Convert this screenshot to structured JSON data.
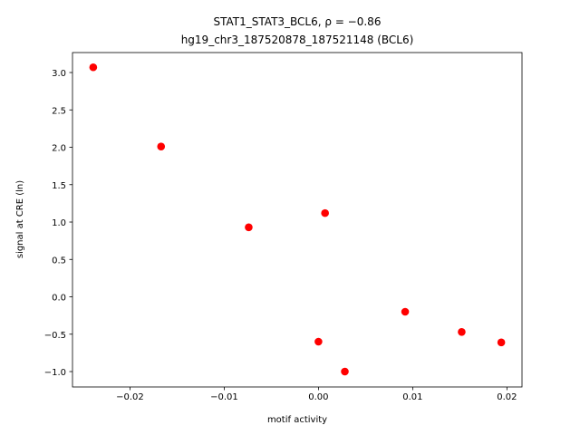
{
  "chart_data": {
    "type": "scatter",
    "title": "STAT1_STAT3_BCL6, ρ = −0.86",
    "subtitle": "hg19_chr3_187520878_187521148 (BCL6)",
    "x_label": "motif activity",
    "y_label": "signal at CRE (ln)",
    "color": "#ff0000",
    "x": [
      -0.0239,
      -0.0167,
      -0.0074,
      0.0007,
      0.0,
      0.0028,
      0.0092,
      0.0152,
      0.0194
    ],
    "values": [
      3.07,
      2.01,
      0.93,
      1.12,
      -0.6,
      -1.0,
      -0.2,
      -0.47,
      -0.61
    ],
    "xlim": [
      -0.0261,
      0.0216
    ],
    "ylim": [
      -1.206,
      3.267
    ],
    "xticks": [
      {
        "value": -0.02,
        "label": "−0.02"
      },
      {
        "value": -0.01,
        "label": "−0.01"
      },
      {
        "value": 0,
        "label": "0.00"
      },
      {
        "value": 0.01,
        "label": "0.01"
      },
      {
        "value": 0.02,
        "label": "0.02"
      }
    ],
    "yticks": [
      {
        "value": -1,
        "label": "−1.0"
      },
      {
        "value": -0.5,
        "label": "−0.5"
      },
      {
        "value": 0,
        "label": "0.0"
      },
      {
        "value": 0.5,
        "label": "0.5"
      },
      {
        "value": 1,
        "label": "1.0"
      },
      {
        "value": 1.5,
        "label": "1.5"
      },
      {
        "value": 2,
        "label": "2.0"
      },
      {
        "value": 2.5,
        "label": "2.5"
      },
      {
        "value": 3,
        "label": "3.0"
      }
    ]
  }
}
